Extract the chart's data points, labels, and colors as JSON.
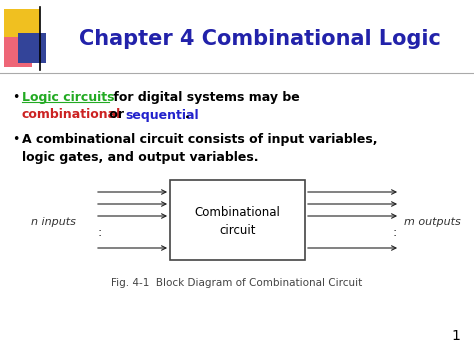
{
  "title": "Chapter 4 Combinational Logic",
  "title_color": "#2222aa",
  "title_fontsize": 15,
  "bg_color": "#ffffff",
  "decoration_gold": "#f0c020",
  "decoration_red": "#ee6677",
  "decoration_blue": "#334499",
  "bullet_color": "#000000",
  "green_text": "#22aa22",
  "red_text": "#cc2222",
  "blue_text": "#2222cc",
  "box_label_line1": "Combinational",
  "box_label_line2": "circuit",
  "n_inputs_label": "n inputs",
  "m_outputs_label": "m outputs",
  "fig_caption": "Fig. 4-1  Block Diagram of Combinational Circuit",
  "arrow_color": "#222222",
  "box_edge_color": "#444444",
  "page_number": "1"
}
